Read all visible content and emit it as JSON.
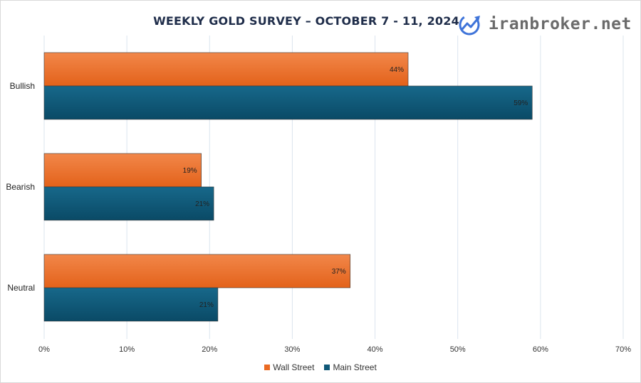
{
  "chart_data": {
    "type": "bar",
    "orientation": "horizontal",
    "title": "WEEKLY GOLD SURVEY – OCTOBER 7 - 11, 2024",
    "categories": [
      "Bullish",
      "Bearish",
      "Neutral"
    ],
    "series": [
      {
        "name": "Wall Street",
        "values": [
          44,
          19,
          37
        ],
        "labels": [
          "44%",
          "19%",
          "37%"
        ],
        "color": "#ea6a22"
      },
      {
        "name": "Main Street",
        "values": [
          59,
          20.5,
          21
        ],
        "labels": [
          "59%",
          "21%",
          "21%"
        ],
        "color": "#0f5878"
      }
    ],
    "x_ticks": [
      "0%",
      "10%",
      "20%",
      "30%",
      "40%",
      "50%",
      "60%",
      "70%"
    ],
    "xlim": [
      0,
      70
    ],
    "grid": true,
    "legend_position": "bottom"
  },
  "branding": {
    "logo_text": "iranbroker.net",
    "logo_color": "#3f74d9"
  }
}
